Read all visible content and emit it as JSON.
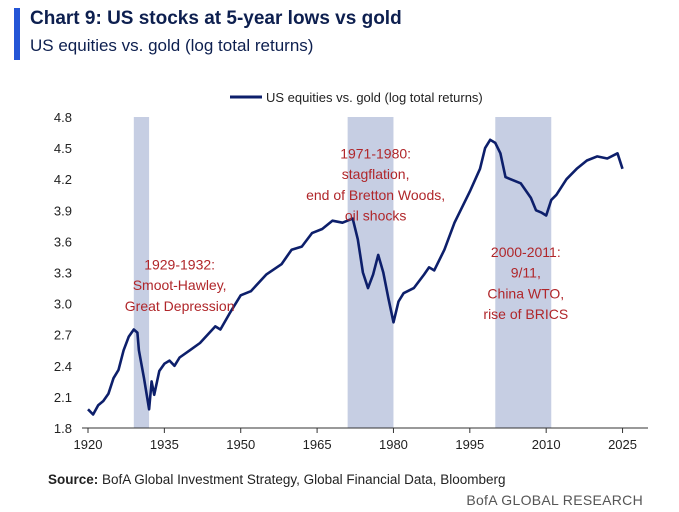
{
  "header": {
    "title": "Chart 9: US stocks at 5-year lows vs gold",
    "subtitle": "US equities vs. gold (log total returns)"
  },
  "footer": {
    "source_label": "Source:",
    "source_text": " BofA Global Investment Strategy, Global Financial Data, Bloomberg",
    "brand": "BofA GLOBAL RESEARCH"
  },
  "colors": {
    "line": "#0d1f6b",
    "shade": "#c6cee3",
    "annotation": "#b0262a",
    "accent": "#2455d6"
  },
  "chart_data": {
    "type": "line",
    "title": "",
    "xlabel": "",
    "ylabel": "",
    "legend": "top-center",
    "grid": false,
    "xlim": [
      1920,
      2030
    ],
    "ylim": [
      1.8,
      4.8
    ],
    "x_ticks": [
      1920,
      1935,
      1950,
      1965,
      1980,
      1995,
      2010,
      2025
    ],
    "y_ticks": [
      "1.8",
      "2.1",
      "2.4",
      "2.7",
      "3.0",
      "3.3",
      "3.6",
      "3.9",
      "4.2",
      "4.5",
      "4.8"
    ],
    "series": [
      {
        "name": "US equities vs. gold (log total returns)",
        "x": [
          1920,
          1921,
          1922,
          1923,
          1924,
          1925,
          1926,
          1927,
          1928,
          1929,
          1929.7,
          1930,
          1931,
          1932,
          1932.5,
          1933,
          1934,
          1935,
          1936,
          1937,
          1938,
          1940,
          1942,
          1945,
          1946,
          1948,
          1950,
          1952,
          1955,
          1958,
          1960,
          1962,
          1964,
          1966,
          1968,
          1970,
          1972,
          1973,
          1974,
          1975,
          1976,
          1977,
          1978,
          1979,
          1980,
          1981,
          1982,
          1984,
          1986,
          1987,
          1988,
          1990,
          1992,
          1995,
          1997,
          1998,
          1999,
          2000,
          2001,
          2002,
          2003,
          2005,
          2007,
          2008,
          2009,
          2010,
          2011,
          2012,
          2014,
          2016,
          2018,
          2020,
          2022,
          2024,
          2025
        ],
        "values": [
          1.98,
          1.93,
          2.02,
          2.06,
          2.13,
          2.28,
          2.36,
          2.55,
          2.68,
          2.75,
          2.72,
          2.55,
          2.28,
          1.98,
          2.25,
          2.12,
          2.35,
          2.42,
          2.45,
          2.4,
          2.48,
          2.55,
          2.62,
          2.78,
          2.75,
          2.92,
          3.08,
          3.12,
          3.28,
          3.38,
          3.52,
          3.55,
          3.68,
          3.72,
          3.8,
          3.78,
          3.82,
          3.62,
          3.3,
          3.15,
          3.28,
          3.47,
          3.3,
          3.05,
          2.82,
          3.02,
          3.1,
          3.15,
          3.28,
          3.35,
          3.32,
          3.52,
          3.78,
          4.08,
          4.3,
          4.5,
          4.58,
          4.55,
          4.45,
          4.22,
          4.2,
          4.16,
          4.02,
          3.9,
          3.88,
          3.85,
          4.0,
          4.05,
          4.2,
          4.3,
          4.38,
          4.42,
          4.4,
          4.45,
          4.3
        ]
      }
    ],
    "shaded_periods": [
      {
        "start": 1929,
        "end": 1932,
        "label": [
          "1929-1932:",
          "Smoot-Hawley,",
          "Great Depression"
        ],
        "label_x": 1938,
        "label_y": [
          3.33,
          3.13,
          2.93
        ]
      },
      {
        "start": 1971,
        "end": 1980,
        "label": [
          "1971-1980:",
          "stagflation,",
          "end of Bretton Woods,",
          "oil shocks"
        ],
        "label_x": 1976.5,
        "label_y": [
          4.4,
          4.2,
          4.0,
          3.8
        ]
      },
      {
        "start": 2000,
        "end": 2011,
        "label": [
          "2000-2011:",
          "9/11,",
          "China WTO,",
          "rise of BRICS"
        ],
        "label_x": 2006,
        "label_y": [
          3.45,
          3.25,
          3.05,
          2.85
        ]
      }
    ]
  }
}
